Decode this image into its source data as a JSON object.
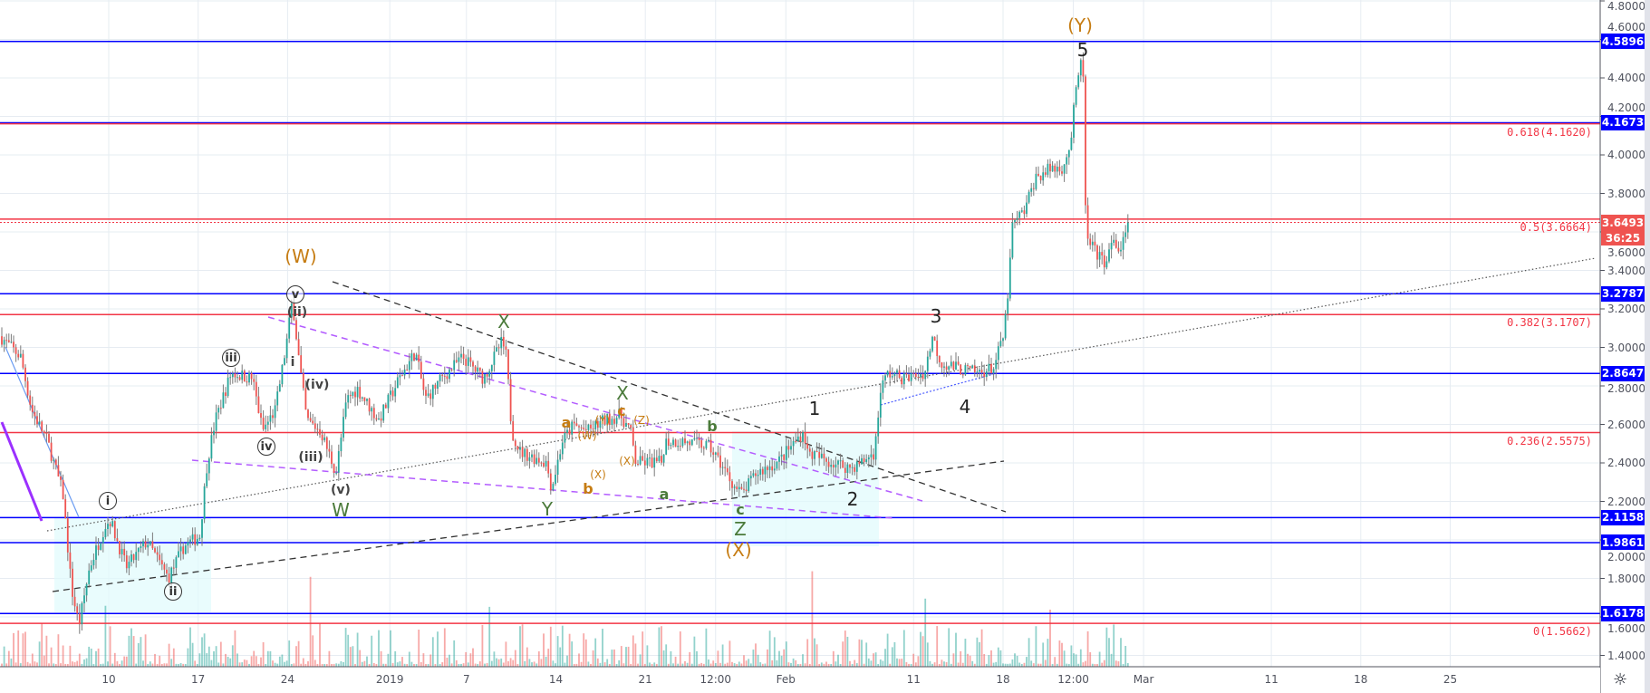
{
  "chart_data": {
    "type": "candlestick",
    "ylim": [
      1.3,
      4.8
    ],
    "grid": true,
    "y_ticks": [
      "4.8000",
      "4.6000",
      "4.4000",
      "4.2000",
      "4.0000",
      "3.8000",
      "3.6000",
      "3.4000",
      "3.2000",
      "3.0000",
      "2.8000",
      "2.6000",
      "2.4000",
      "2.2000",
      "2.0000",
      "1.8000",
      "1.6000",
      "1.4000"
    ],
    "x_ticks": [
      {
        "label": "10",
        "date": "2018-12-10 00:00"
      },
      {
        "label": "17",
        "date": "2018-12-17 00:00"
      },
      {
        "label": "24",
        "date": "2018-12-24 00:00"
      },
      {
        "label": "2019",
        "date": "2019-01-01 00:00"
      },
      {
        "label": "7",
        "date": "2019-01-07 00:00"
      },
      {
        "label": "14",
        "date": "2019-01-14 00:00"
      },
      {
        "label": "21",
        "date": "2019-01-21 00:00"
      },
      {
        "label": "12:00",
        "date": "2019-01-26 12:00"
      },
      {
        "label": "Feb",
        "date": "2019-02-01 00:00"
      },
      {
        "label": "11",
        "date": "2019-02-11 00:00"
      },
      {
        "label": "18",
        "date": "2019-02-18 00:00"
      },
      {
        "label": "12:00",
        "date": "2019-02-23 12:00"
      },
      {
        "label": "Mar",
        "date": "2019-03-01 00:00"
      },
      {
        "label": "11",
        "date": "2019-03-11 00:00"
      },
      {
        "label": "18",
        "date": "2019-03-18 00:00"
      },
      {
        "label": "25",
        "date": "2019-03-25 00:00"
      }
    ],
    "price_path": [
      [
        "2018-12-01 12:00",
        3.058
      ],
      [
        "2018-12-03 03:00",
        2.949
      ],
      [
        "2018-12-03 23:00",
        2.676
      ],
      [
        "2018-12-05 05:00",
        2.512
      ],
      [
        "2018-12-06 10:00",
        2.239
      ],
      [
        "2018-12-07 02:00",
        1.748
      ],
      [
        "2018-12-07 16:00",
        1.557
      ],
      [
        "2018-12-08 12:00",
        1.857
      ],
      [
        "2018-12-09 17:00",
        2.075
      ],
      [
        "2018-12-10 03:00",
        2.102
      ],
      [
        "2018-12-11 09:00",
        1.857
      ],
      [
        "2018-12-13 00:00",
        1.993
      ],
      [
        "2018-12-14 16:00",
        1.802
      ],
      [
        "2018-12-15 21:00",
        1.966
      ],
      [
        "2018-12-17 03:00",
        2.021
      ],
      [
        "2018-12-17 17:00",
        2.403
      ],
      [
        "2018-12-18 08:00",
        2.621
      ],
      [
        "2018-12-19 04:00",
        2.785
      ],
      [
        "2018-12-19 14:00",
        2.867
      ],
      [
        "2018-12-21 06:00",
        2.839
      ],
      [
        "2018-12-22 01:00",
        2.566
      ],
      [
        "2018-12-23 01:00",
        2.676
      ],
      [
        "2018-12-23 21:00",
        3.003
      ],
      [
        "2018-12-24 09:00",
        3.249
      ],
      [
        "2018-12-24 23:00",
        2.894
      ],
      [
        "2018-12-25 12:00",
        2.621
      ],
      [
        "2018-12-26 14:00",
        2.566
      ],
      [
        "2018-12-27 19:00",
        2.348
      ],
      [
        "2018-12-28 15:00",
        2.73
      ],
      [
        "2018-12-29 11:00",
        2.785
      ],
      [
        "2018-12-31 03:00",
        2.621
      ],
      [
        "2019-01-01 18:00",
        2.839
      ],
      [
        "2019-01-03 00:00",
        2.976
      ],
      [
        "2019-01-03 19:00",
        2.73
      ],
      [
        "2019-01-05 01:00",
        2.839
      ],
      [
        "2019-01-06 17:00",
        2.949
      ],
      [
        "2019-01-08 08:00",
        2.839
      ],
      [
        "2019-01-09 19:00",
        3.031
      ],
      [
        "2019-01-10 03:00",
        2.949
      ],
      [
        "2019-01-10 13:00",
        2.566
      ],
      [
        "2019-01-11 05:00",
        2.457
      ],
      [
        "2019-01-13 06:00",
        2.403
      ],
      [
        "2019-01-13 16:00",
        2.266
      ],
      [
        "2019-01-14 12:00",
        2.512
      ],
      [
        "2019-01-15 08:00",
        2.594
      ],
      [
        "2019-01-16 13:00",
        2.566
      ],
      [
        "2019-01-17 19:00",
        2.621
      ],
      [
        "2019-01-19 01:00",
        2.648
      ],
      [
        "2019-01-19 20:00",
        2.566
      ],
      [
        "2019-01-20 06:00",
        2.403
      ],
      [
        "2019-01-22 08:00",
        2.403
      ],
      [
        "2019-01-22 12:00",
        2.512
      ],
      [
        "2019-01-23 23:00",
        2.512
      ],
      [
        "2019-01-26 00:00",
        2.485
      ],
      [
        "2019-01-26 20:00",
        2.403
      ],
      [
        "2019-01-28 02:00",
        2.266
      ],
      [
        "2019-01-28 14:00",
        2.239
      ],
      [
        "2019-01-29 17:00",
        2.348
      ],
      [
        "2019-01-31 09:00",
        2.403
      ],
      [
        "2019-02-02 10:00",
        2.566
      ],
      [
        "2019-02-02 16:00",
        2.457
      ],
      [
        "2019-02-04 12:00",
        2.403
      ],
      [
        "2019-02-06 03:00",
        2.375
      ],
      [
        "2019-02-06 23:00",
        2.403
      ],
      [
        "2019-02-07 23:00",
        2.457
      ],
      [
        "2019-02-08 10:00",
        2.785
      ],
      [
        "2019-02-09 00:00",
        2.867
      ],
      [
        "2019-02-10 06:00",
        2.839
      ],
      [
        "2019-02-11 21:00",
        2.867
      ],
      [
        "2019-02-12 11:00",
        3.058
      ],
      [
        "2019-02-13 03:00",
        2.921
      ],
      [
        "2019-02-14 08:00",
        2.894
      ],
      [
        "2019-02-16 00:00",
        2.867
      ],
      [
        "2019-02-17 06:00",
        2.894
      ],
      [
        "2019-02-18 01:00",
        3.058
      ],
      [
        "2019-02-18 11:00",
        3.331
      ],
      [
        "2019-02-18 17:00",
        3.631
      ],
      [
        "2019-02-19 17:00",
        3.713
      ],
      [
        "2019-02-20 12:00",
        3.877
      ],
      [
        "2019-02-21 18:00",
        3.931
      ],
      [
        "2019-02-22 14:00",
        3.931
      ],
      [
        "2019-02-23 06:00",
        4.04
      ],
      [
        "2019-02-23 14:00",
        4.259
      ],
      [
        "2019-02-24 01:00",
        4.477
      ],
      [
        "2019-02-24 07:00",
        4.422
      ],
      [
        "2019-02-24 09:00",
        3.795
      ],
      [
        "2019-02-24 15:00",
        3.549
      ],
      [
        "2019-02-25 21:00",
        3.44
      ],
      [
        "2019-02-26 17:00",
        3.549
      ],
      [
        "2019-02-27 03:00",
        3.494
      ],
      [
        "2019-02-27 22:00",
        3.649
      ]
    ],
    "horizontal_levels": [
      {
        "price": 4.5896,
        "label": "4.5896",
        "color": "#0000ff"
      },
      {
        "price": 4.1673,
        "label": "4.1673",
        "color": "#0000ff"
      },
      {
        "price": 3.2787,
        "label": "3.2787",
        "color": "#0000ff"
      },
      {
        "price": 2.8647,
        "label": "2.8647",
        "color": "#0000ff"
      },
      {
        "price": 2.1158,
        "label": "2.1158",
        "color": "#0000ff"
      },
      {
        "price": 1.9861,
        "label": "1.9861",
        "color": "#0000ff"
      },
      {
        "price": 1.6178,
        "label": "1.6178",
        "color": "#0000ff"
      }
    ],
    "fib_levels": [
      {
        "price": 4.162,
        "label": "0.618(4.1620)"
      },
      {
        "price": 3.6664,
        "label": "0.5(3.6664)"
      },
      {
        "price": 3.1707,
        "label": "0.382(3.1707)"
      },
      {
        "price": 2.5575,
        "label": "0.236(2.5575)"
      },
      {
        "price": 1.5662,
        "label": "0(1.5662)"
      }
    ],
    "last_price": {
      "price": 3.6493,
      "label": "3.6493",
      "countdown": "36:25"
    },
    "wave_labels": [
      {
        "text": "(W)"
      },
      {
        "text": "v"
      },
      {
        "text": "(ii)"
      },
      {
        "text": "i"
      },
      {
        "text": "iii"
      },
      {
        "text": "iv"
      },
      {
        "text": "(iv)"
      },
      {
        "text": "(iii)"
      },
      {
        "text": "(v)"
      },
      {
        "text": "W"
      },
      {
        "text": "i"
      },
      {
        "text": "ii"
      },
      {
        "text": "X"
      },
      {
        "text": "X"
      },
      {
        "text": "c"
      },
      {
        "text": "(Z)"
      },
      {
        "text": "(Y)"
      },
      {
        "text": "a"
      },
      {
        "text": "(W)"
      },
      {
        "text": "(X)"
      },
      {
        "text": "(X)"
      },
      {
        "text": "b"
      },
      {
        "text": "b"
      },
      {
        "text": "a"
      },
      {
        "text": "Y"
      },
      {
        "text": "c"
      },
      {
        "text": "Z"
      },
      {
        "text": "(X)"
      },
      {
        "text": "1"
      },
      {
        "text": "2"
      },
      {
        "text": "(Y)"
      },
      {
        "text": "5"
      },
      {
        "text": "3"
      },
      {
        "text": "4"
      }
    ],
    "colors": {
      "up": "#26a69a",
      "down": "#ef5350",
      "wick": "#7a7a7a",
      "fib": "#f23645",
      "level": "#0000ff",
      "wave_orange": "#c67c12",
      "wave_green": "#4a7a3a",
      "purple": "#b35cff",
      "highlight": "#e0fbfc"
    }
  }
}
